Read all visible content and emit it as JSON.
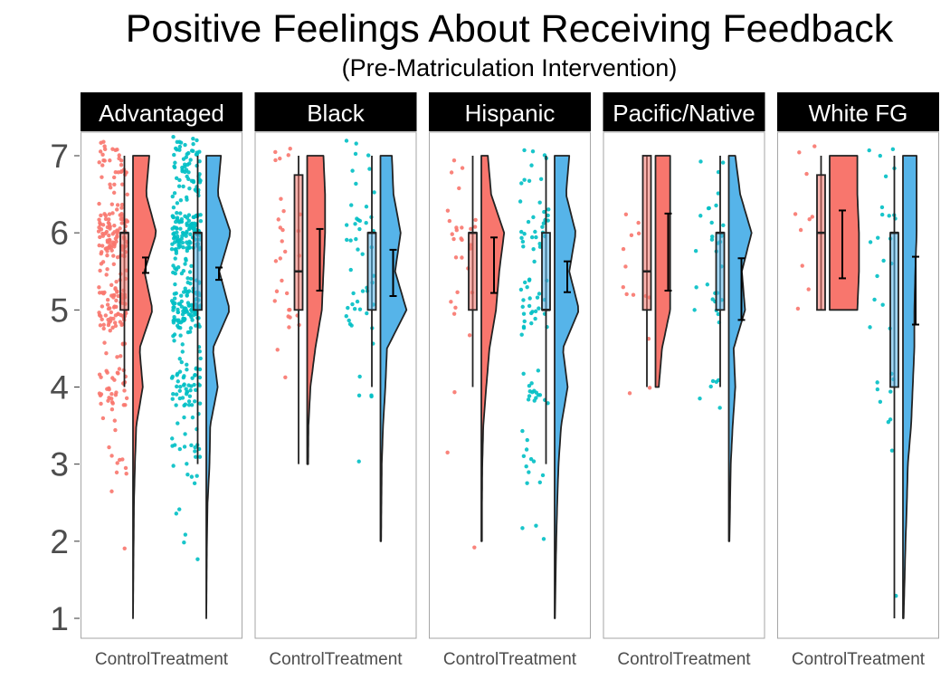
{
  "chart_data": {
    "type": "raincloud",
    "title": "Positive Feelings About Receiving Feedback",
    "subtitle": "(Pre-Matriculation Intervention)",
    "ylim": [
      0.75,
      7.3
    ],
    "yticks": [
      1,
      2,
      3,
      4,
      5,
      6,
      7
    ],
    "conditions": [
      "Control",
      "Treatment"
    ],
    "colors": {
      "Control": "#f8766d",
      "Treatment": "#00bfc4",
      "Treatment_density": "#56b4e9",
      "strip": "#000000",
      "panel_border": "#a6a6a6"
    },
    "panels": [
      {
        "name": "Advantaged",
        "groups": [
          {
            "condition": "Control",
            "n": 260,
            "q1": 5,
            "median": 6,
            "q3": 6,
            "whisker_low": 4,
            "whisker_high": 7,
            "min": 1,
            "max": 7,
            "mean": 5.58,
            "se": 0.05,
            "density": [
              [
                1,
                0.0
              ],
              [
                1.5,
                0.01
              ],
              [
                2,
                0.02
              ],
              [
                2.5,
                0.03
              ],
              [
                3,
                0.06
              ],
              [
                3.5,
                0.1
              ],
              [
                4,
                0.3
              ],
              [
                4.5,
                0.2
              ],
              [
                5,
                0.6
              ],
              [
                5.5,
                0.35
              ],
              [
                6,
                0.72
              ],
              [
                6.5,
                0.4
              ],
              [
                7,
                0.5
              ]
            ]
          },
          {
            "condition": "Treatment",
            "n": 380,
            "q1": 5,
            "median": 6,
            "q3": 6,
            "whisker_low": 3,
            "whisker_high": 7,
            "min": 1,
            "max": 7,
            "mean": 5.47,
            "se": 0.04,
            "density": [
              [
                1,
                0.0
              ],
              [
                1.5,
                0.01
              ],
              [
                2,
                0.02
              ],
              [
                2.5,
                0.04
              ],
              [
                3,
                0.1
              ],
              [
                3.5,
                0.12
              ],
              [
                4,
                0.35
              ],
              [
                4.5,
                0.2
              ],
              [
                5,
                0.72
              ],
              [
                5.5,
                0.4
              ],
              [
                6,
                0.75
              ],
              [
                6.5,
                0.35
              ],
              [
                7,
                0.45
              ]
            ]
          }
        ]
      },
      {
        "name": "Black",
        "groups": [
          {
            "condition": "Control",
            "n": 30,
            "q1": 5,
            "median": 5.5,
            "q3": 6.75,
            "whisker_low": 3,
            "whisker_high": 7,
            "min": 3,
            "max": 7,
            "mean": 5.65,
            "se": 0.2,
            "density": [
              [
                3,
                0.03
              ],
              [
                3.5,
                0.04
              ],
              [
                4,
                0.1
              ],
              [
                4.5,
                0.25
              ],
              [
                5,
                0.45
              ],
              [
                5.5,
                0.5
              ],
              [
                6,
                0.55
              ],
              [
                6.5,
                0.55
              ],
              [
                7,
                0.5
              ]
            ]
          },
          {
            "condition": "Treatment",
            "n": 50,
            "q1": 5,
            "median": 6,
            "q3": 6,
            "whisker_low": 4,
            "whisker_high": 7,
            "min": 2,
            "max": 7,
            "mean": 5.48,
            "se": 0.15,
            "density": [
              [
                2,
                0.02
              ],
              [
                2.5,
                0.03
              ],
              [
                3,
                0.04
              ],
              [
                3.5,
                0.08
              ],
              [
                4,
                0.15
              ],
              [
                4.5,
                0.2
              ],
              [
                5,
                0.8
              ],
              [
                5.5,
                0.45
              ],
              [
                6,
                0.62
              ],
              [
                6.5,
                0.4
              ],
              [
                7,
                0.35
              ]
            ]
          }
        ]
      },
      {
        "name": "Hispanic",
        "groups": [
          {
            "condition": "Control",
            "n": 30,
            "q1": 5,
            "median": 6,
            "q3": 6,
            "whisker_low": 4,
            "whisker_high": 7,
            "min": 2,
            "max": 7,
            "mean": 5.58,
            "se": 0.18,
            "density": [
              [
                2,
                0.02
              ],
              [
                2.5,
                0.02
              ],
              [
                3,
                0.03
              ],
              [
                3.5,
                0.06
              ],
              [
                4,
                0.15
              ],
              [
                4.5,
                0.25
              ],
              [
                5,
                0.45
              ],
              [
                5.5,
                0.55
              ],
              [
                6,
                0.7
              ],
              [
                6.5,
                0.3
              ],
              [
                7,
                0.2
              ]
            ]
          },
          {
            "condition": "Treatment",
            "n": 90,
            "q1": 5,
            "median": 5,
            "q3": 6,
            "whisker_low": 3,
            "whisker_high": 7,
            "min": 1,
            "max": 7,
            "mean": 5.43,
            "se": 0.1,
            "density": [
              [
                1,
                0.01
              ],
              [
                1.5,
                0.03
              ],
              [
                2,
                0.05
              ],
              [
                2.5,
                0.08
              ],
              [
                3,
                0.12
              ],
              [
                3.5,
                0.2
              ],
              [
                4,
                0.4
              ],
              [
                4.5,
                0.25
              ],
              [
                5,
                0.75
              ],
              [
                5.5,
                0.45
              ],
              [
                6,
                0.65
              ],
              [
                6.5,
                0.35
              ],
              [
                7,
                0.45
              ]
            ]
          }
        ]
      },
      {
        "name": "Pacific/Native",
        "groups": [
          {
            "condition": "Control",
            "n": 14,
            "q1": 5,
            "median": 5.5,
            "q3": 7,
            "whisker_low": 4,
            "whisker_high": 7,
            "min": 4,
            "max": 7,
            "mean": 5.75,
            "se": 0.25,
            "density": [
              [
                4,
                0.1
              ],
              [
                4.5,
                0.2
              ],
              [
                5,
                0.45
              ],
              [
                5.5,
                0.45
              ],
              [
                6,
                0.45
              ],
              [
                6.5,
                0.45
              ],
              [
                7,
                0.45
              ]
            ]
          },
          {
            "condition": "Treatment",
            "n": 35,
            "q1": 5,
            "median": 6,
            "q3": 6,
            "whisker_low": 4,
            "whisker_high": 7,
            "min": 2,
            "max": 7,
            "mean": 5.27,
            "se": 0.2,
            "density": [
              [
                2,
                0.02
              ],
              [
                2.5,
                0.04
              ],
              [
                3,
                0.06
              ],
              [
                3.5,
                0.12
              ],
              [
                4,
                0.2
              ],
              [
                4.5,
                0.15
              ],
              [
                5,
                0.5
              ],
              [
                5.5,
                0.4
              ],
              [
                6,
                0.7
              ],
              [
                6.5,
                0.35
              ],
              [
                7,
                0.2
              ]
            ]
          }
        ]
      },
      {
        "name": "White FG",
        "groups": [
          {
            "condition": "Control",
            "n": 10,
            "q1": 5,
            "median": 6,
            "q3": 6.75,
            "whisker_low": 5,
            "whisker_high": 7,
            "min": 5,
            "max": 7,
            "mean": 5.85,
            "se": 0.22,
            "density": [
              [
                5,
                0.85
              ],
              [
                5.5,
                0.9
              ],
              [
                6,
                0.9
              ],
              [
                6.5,
                0.85
              ],
              [
                7,
                0.85
              ]
            ]
          },
          {
            "condition": "Treatment",
            "n": 30,
            "q1": 4,
            "median": 6,
            "q3": 6,
            "whisker_low": 1,
            "whisker_high": 7,
            "min": 1,
            "max": 7,
            "mean": 5.25,
            "se": 0.22,
            "density": [
              [
                1,
                0.02
              ],
              [
                1.5,
                0.05
              ],
              [
                2,
                0.08
              ],
              [
                2.5,
                0.12
              ],
              [
                3,
                0.15
              ],
              [
                3.5,
                0.25
              ],
              [
                4,
                0.3
              ],
              [
                4.5,
                0.35
              ],
              [
                5,
                0.35
              ],
              [
                5.5,
                0.38
              ],
              [
                6,
                0.42
              ],
              [
                6.5,
                0.42
              ],
              [
                7,
                0.42
              ]
            ]
          }
        ]
      }
    ]
  }
}
